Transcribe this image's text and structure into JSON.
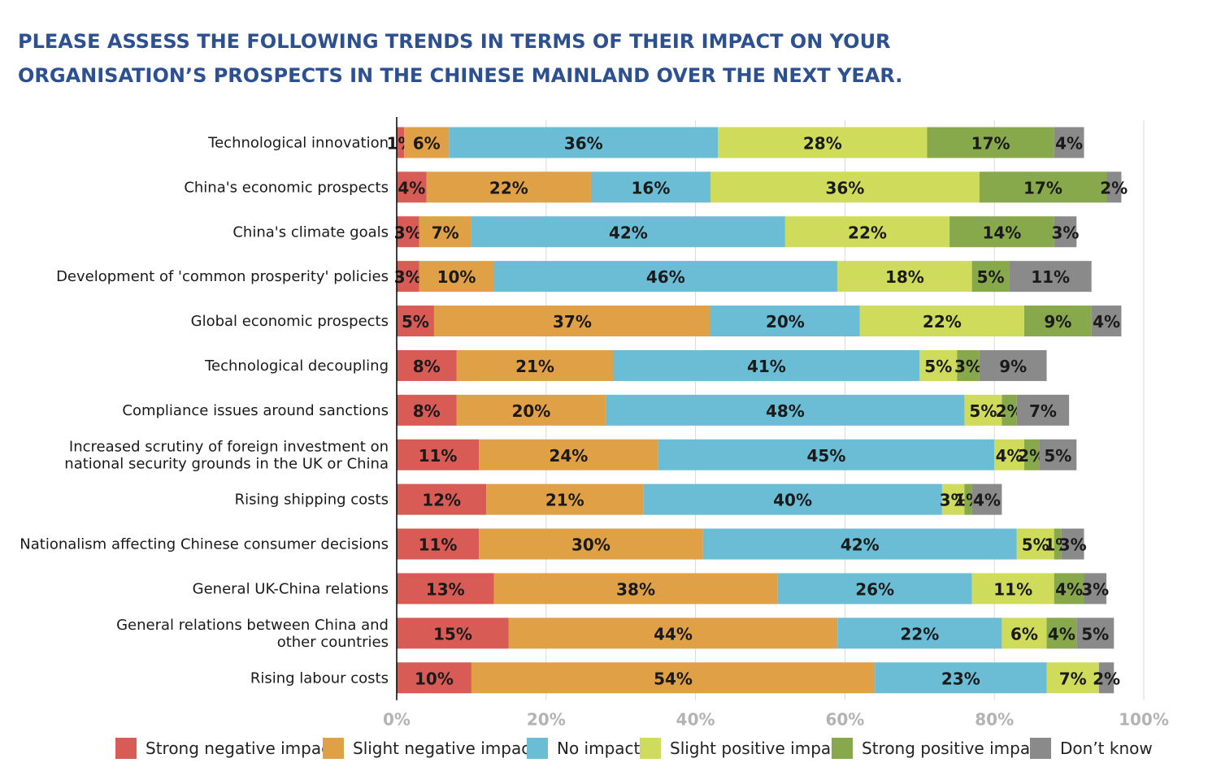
{
  "title_lines": [
    "PLEASE ASSESS THE FOLLOWING TRENDS IN TERMS OF THEIR IMPACT ON YOUR",
    "ORGANISATION’S PROSPECTS IN THE CHINESE MAINLAND OVER THE NEXT YEAR."
  ],
  "colors": {
    "title": "#2d5091",
    "strong_negative": "#d85b55",
    "slight_negative": "#e0a046",
    "no_impact": "#6bbdd6",
    "slight_positive": "#cfdb5b",
    "strong_positive": "#88a84c",
    "dont_know": "#8a8a8a",
    "grid": "#d9d9d9",
    "tick_label": "#b3b3b3"
  },
  "chart_data": {
    "type": "bar",
    "orientation": "horizontal",
    "stacked": true,
    "categories": [
      [
        "Technological innovation"
      ],
      [
        "China's economic prospects"
      ],
      [
        "China's climate goals"
      ],
      [
        "Development of 'common prosperity' policies"
      ],
      [
        "Global economic prospects"
      ],
      [
        "Technological decoupling"
      ],
      [
        "Compliance issues around sanctions"
      ],
      [
        "Increased scrutiny of foreign investment on",
        "national security grounds in the UK or China"
      ],
      [
        "Rising shipping costs"
      ],
      [
        "Nationalism affecting Chinese consumer decisions"
      ],
      [
        "General UK-China relations"
      ],
      [
        "General relations between China and",
        "other countries"
      ],
      [
        "Rising labour costs"
      ]
    ],
    "series": [
      {
        "name": "Strong negative impact",
        "values": [
          1,
          4,
          3,
          3,
          5,
          8,
          8,
          11,
          12,
          11,
          13,
          15,
          10
        ]
      },
      {
        "name": "Slight negative impact",
        "values": [
          6,
          22,
          7,
          10,
          37,
          21,
          20,
          24,
          21,
          30,
          38,
          44,
          54
        ]
      },
      {
        "name": "No impact",
        "values": [
          36,
          16,
          42,
          46,
          20,
          41,
          48,
          45,
          40,
          42,
          26,
          22,
          23
        ]
      },
      {
        "name": "Slight positive impact",
        "values": [
          28,
          36,
          22,
          18,
          22,
          5,
          5,
          4,
          3,
          5,
          11,
          6,
          7
        ]
      },
      {
        "name": "Strong positive impact",
        "values": [
          17,
          17,
          14,
          5,
          9,
          3,
          2,
          2,
          1,
          1,
          4,
          4,
          0
        ]
      },
      {
        "name": "Don’t know",
        "values": [
          4,
          2,
          3,
          11,
          4,
          9,
          7,
          5,
          4,
          3,
          3,
          5,
          2
        ]
      }
    ],
    "x_ticks": [
      "0%",
      "20%",
      "40%",
      "60%",
      "80%",
      "100%"
    ],
    "xlim": [
      0,
      100
    ],
    "grid": true,
    "legend_position": "bottom"
  }
}
